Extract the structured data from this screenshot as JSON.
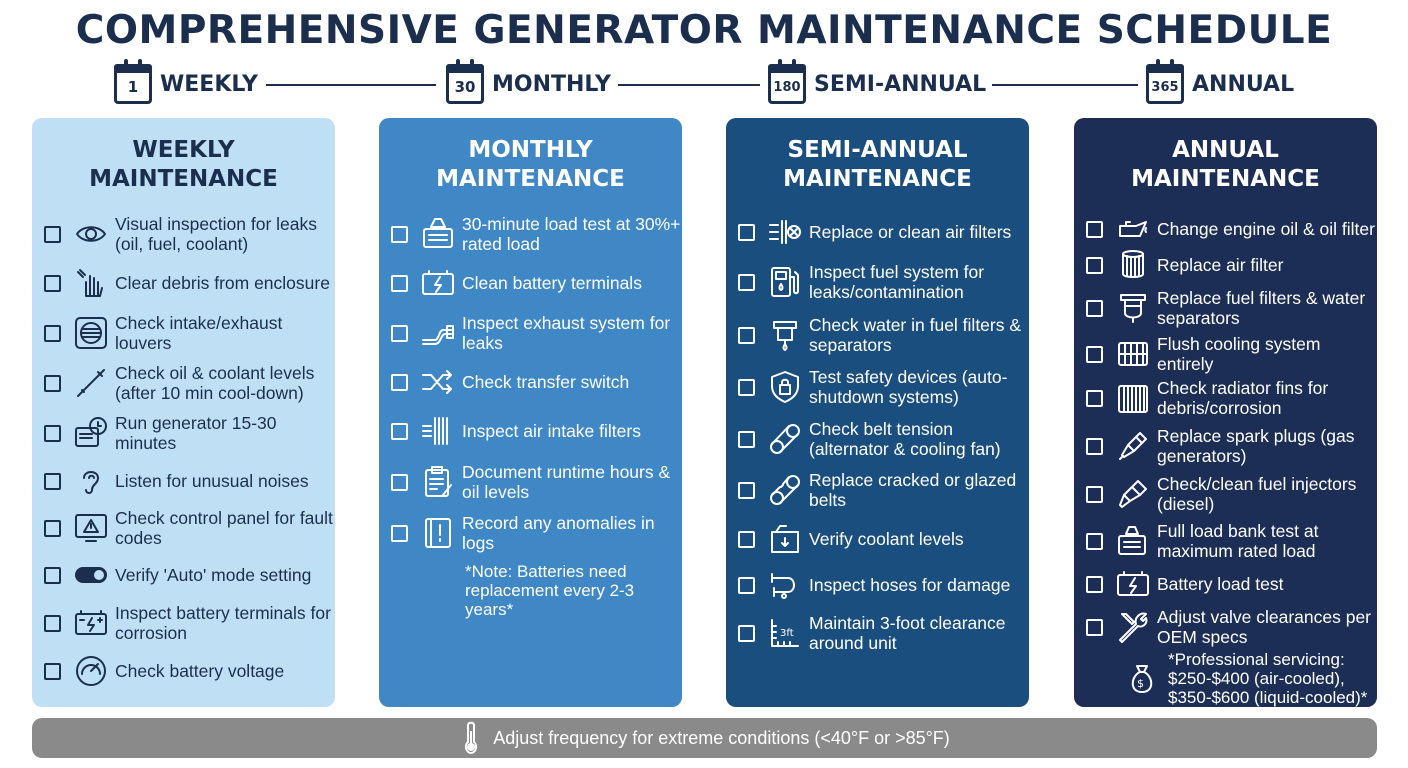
{
  "title": "COMPREHENSIVE GENERATOR MAINTENANCE SCHEDULE",
  "timeline": [
    {
      "num": "1",
      "label": "WEEKLY"
    },
    {
      "num": "30",
      "label": "MONTHLY"
    },
    {
      "num": "180",
      "label": "SEMI-ANNUAL"
    },
    {
      "num": "365",
      "label": "ANNUAL"
    }
  ],
  "colors": {
    "title": "#1c2e4e",
    "weekly": "#bfe0f4",
    "monthly": "#3f88c5",
    "semi_annual": "#1a4e7e",
    "annual": "#1c2e55",
    "footer": "#8a8a8a"
  },
  "columns": [
    {
      "heading_line1": "WEEKLY",
      "heading_line2": "MAINTENANCE",
      "items": [
        {
          "icon": "eye-icon",
          "text": "Visual inspection for leaks (oil, fuel, coolant)"
        },
        {
          "icon": "hand-sweep-icon",
          "text": "Clear debris from enclosure"
        },
        {
          "icon": "louver-icon",
          "text": "Check intake/exhaust louvers"
        },
        {
          "icon": "dipstick-icon",
          "text": "Check oil & coolant levels (after 10 min cool-down)"
        },
        {
          "icon": "generator-clock-icon",
          "text": "Run generator 15-30 minutes"
        },
        {
          "icon": "ear-icon",
          "text": "Listen for unusual noises"
        },
        {
          "icon": "warning-panel-icon",
          "text": "Check control panel for fault codes"
        },
        {
          "icon": "toggle-icon",
          "text": "Verify 'Auto' mode setting"
        },
        {
          "icon": "battery-icon",
          "text": "Inspect battery terminals for corrosion"
        },
        {
          "icon": "gauge-icon",
          "text": "Check battery voltage"
        }
      ]
    },
    {
      "heading_line1": "MONTHLY",
      "heading_line2": "MAINTENANCE",
      "items": [
        {
          "icon": "weight-generator-icon",
          "text": "30-minute load test at 30%+ rated load"
        },
        {
          "icon": "battery-bolt-icon",
          "text": "Clean battery terminals"
        },
        {
          "icon": "exhaust-pipe-icon",
          "text": "Inspect exhaust system for leaks"
        },
        {
          "icon": "shuffle-icon",
          "text": "Check transfer switch"
        },
        {
          "icon": "air-filter-icon",
          "text": "Inspect air intake filters"
        },
        {
          "icon": "clipboard-icon",
          "text": "Document runtime hours & oil levels"
        },
        {
          "icon": "logbook-icon",
          "text": "Record any anomalies in logs"
        }
      ],
      "note": "*Note: Batteries need replacement every 2-3 years*"
    },
    {
      "heading_line1": "SEMI-ANNUAL",
      "heading_line2": "MAINTENANCE",
      "items": [
        {
          "icon": "air-filter-replace-icon",
          "text": "Replace or clean air filters"
        },
        {
          "icon": "fuel-pump-icon",
          "text": "Inspect fuel system for leaks/contamination"
        },
        {
          "icon": "water-separator-icon",
          "text": "Check water in fuel filters & separators"
        },
        {
          "icon": "shield-lock-icon",
          "text": "Test safety devices (auto-shutdown systems)"
        },
        {
          "icon": "belt-icon",
          "text": "Check belt tension (alternator & cooling fan)"
        },
        {
          "icon": "cracked-belt-icon",
          "text": "Replace cracked or glazed belts"
        },
        {
          "icon": "coolant-tank-icon",
          "text": "Verify coolant levels"
        },
        {
          "icon": "hose-icon",
          "text": "Inspect hoses for damage"
        },
        {
          "icon": "ruler-icon",
          "text": "Maintain 3-foot clearance around unit"
        }
      ]
    },
    {
      "heading_line1": "ANNUAL",
      "heading_line2": "MAINTENANCE",
      "items": [
        {
          "icon": "oil-can-icon",
          "text": "Change engine oil & oil filter"
        },
        {
          "icon": "air-filter-cylinder-icon",
          "text": "Replace air filter"
        },
        {
          "icon": "fuel-filter-icon",
          "text": "Replace fuel filters & water separators"
        },
        {
          "icon": "cooling-system-icon",
          "text": "Flush cooling system entirely"
        },
        {
          "icon": "radiator-icon",
          "text": "Check radiator fins for debris/corrosion"
        },
        {
          "icon": "spark-plug-icon",
          "text": "Replace spark plugs (gas generators)"
        },
        {
          "icon": "injector-icon",
          "text": "Check/clean fuel injectors (diesel)"
        },
        {
          "icon": "load-bank-icon",
          "text": "Full load bank test at maximum rated load"
        },
        {
          "icon": "battery-bolt-icon",
          "text": "Battery load test"
        },
        {
          "icon": "wrench-screwdriver-icon",
          "text": "Adjust valve clearances per OEM specs"
        }
      ],
      "note_line1": "*Professional servicing:",
      "note_line2": "$250-$400 (air-cooled),",
      "note_line3": "$350-$600 (liquid-cooled)*",
      "note_icon": "money-bag-icon"
    }
  ],
  "footer": {
    "icon": "thermometer-icon",
    "text": "Adjust frequency for extreme conditions (<40°F or >85°F)"
  }
}
